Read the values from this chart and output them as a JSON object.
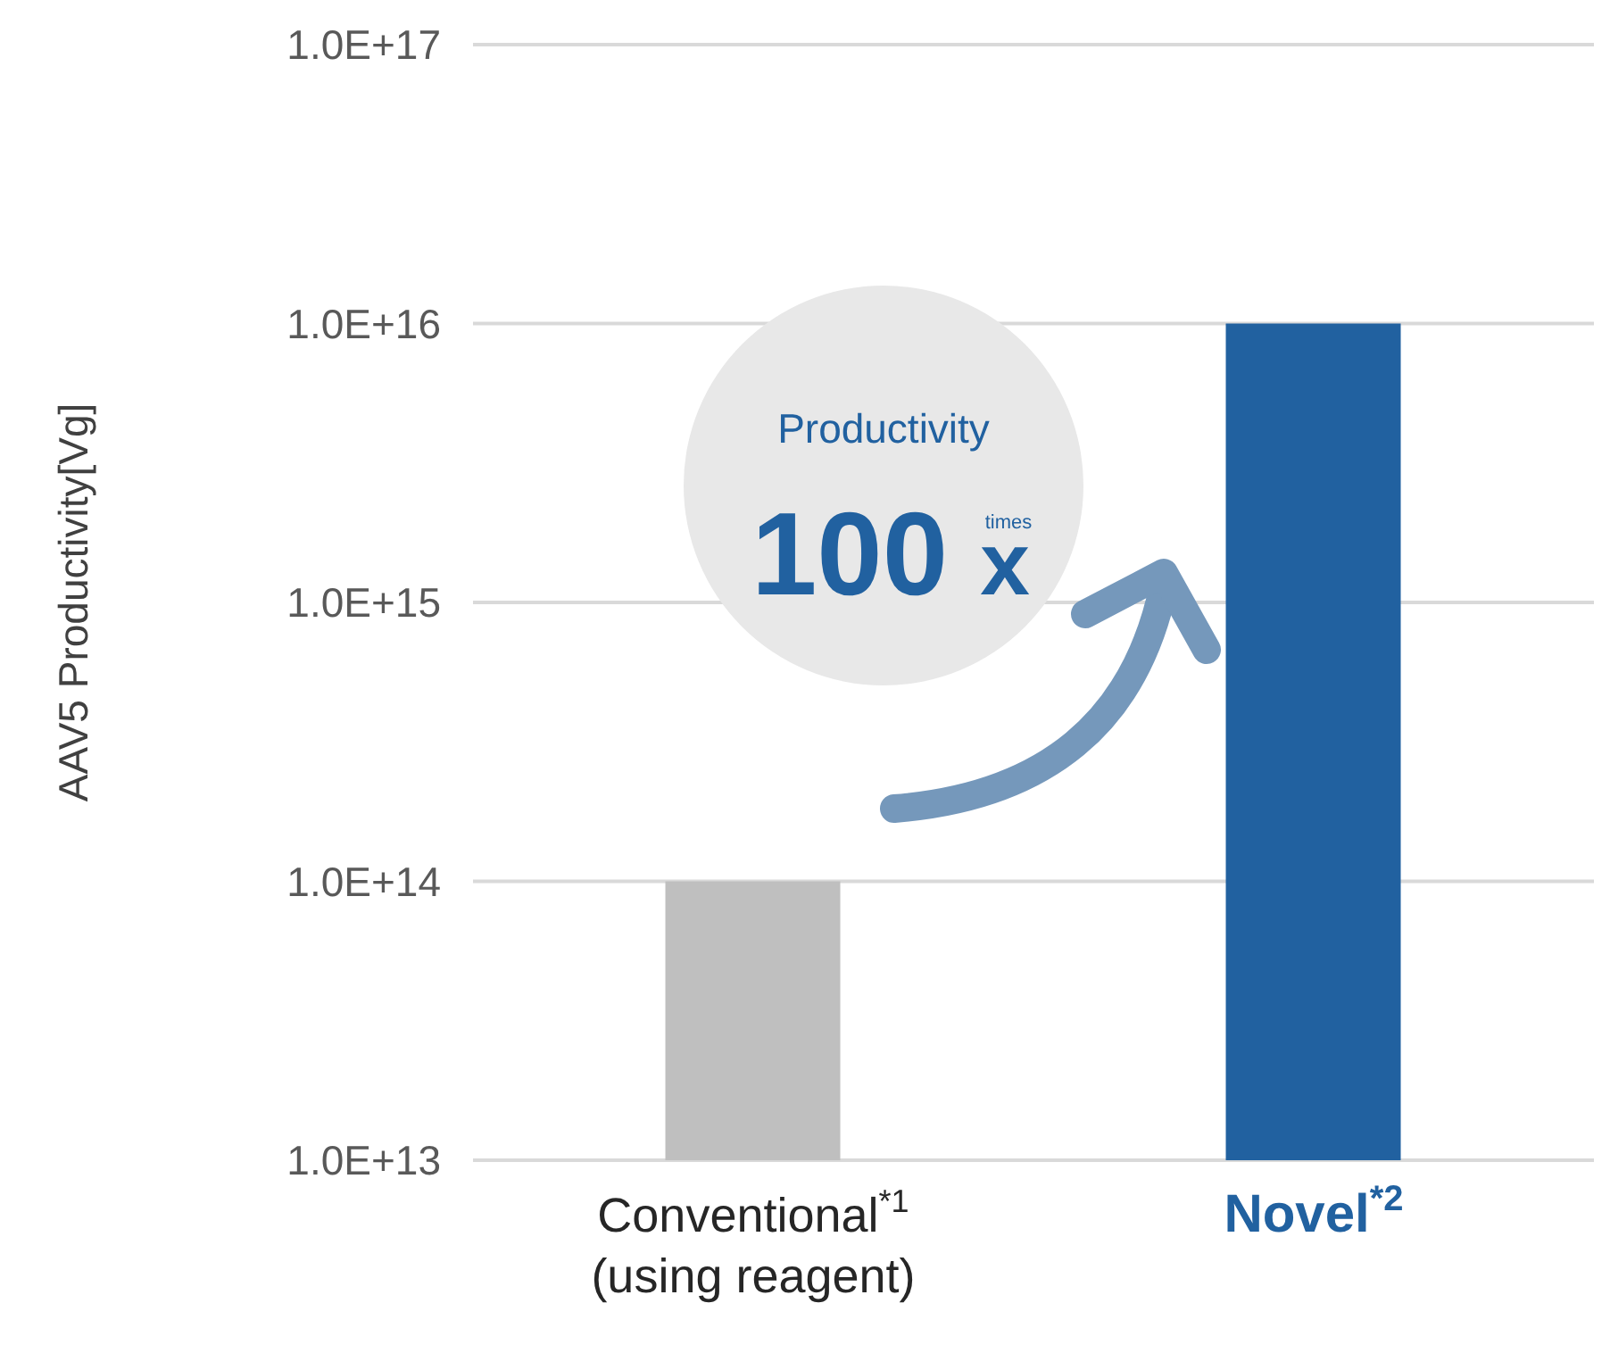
{
  "chart_data": {
    "type": "bar",
    "ylabel": "AAV5 Productivity[Vg]",
    "categories": [
      "Conventional$^{*1}$\n(using reagent)",
      "Novel$^{*2}$"
    ],
    "values": [
      100000000000000.0,
      1e+16
    ],
    "colors": [
      "#bfbfbf",
      "#2161a0"
    ],
    "log": true,
    "ylim": [
      10000000000000.0,
      1e+17
    ],
    "yticks": [
      {
        "value": 10000000000000.0,
        "label": "1.0E+13"
      },
      {
        "value": 100000000000000.0,
        "label": "1.0E+14"
      },
      {
        "value": 1000000000000000.0,
        "label": "1.0E+15"
      },
      {
        "value": 1e+16,
        "label": "1.0E+16"
      },
      {
        "value": 1e+17,
        "label": "1.0E+17"
      }
    ],
    "grid": "y",
    "annotations": [
      "Productivity",
      "100",
      "x",
      "times"
    ]
  }
}
